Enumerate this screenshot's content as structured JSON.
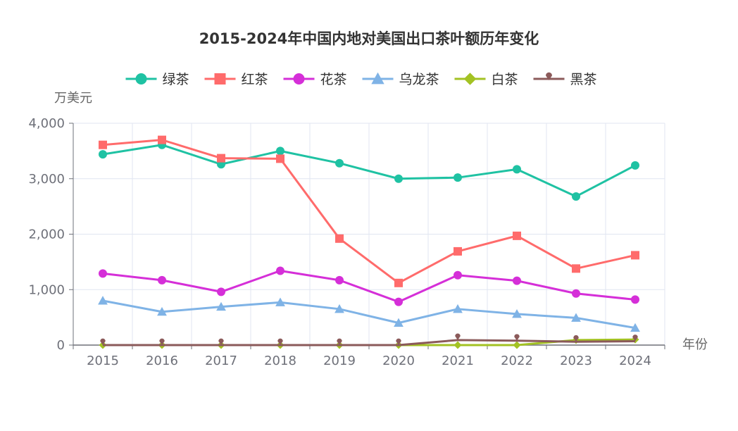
{
  "chart_data": {
    "type": "line",
    "title": "2015-2024年中国内地对美国出口茶叶额历年变化",
    "ylabel": "万美元",
    "xlabel": "年份",
    "categories": [
      "2015",
      "2016",
      "2017",
      "2018",
      "2019",
      "2020",
      "2021",
      "2022",
      "2023",
      "2024"
    ],
    "ylim": [
      0,
      4000
    ],
    "yticks": [
      "0",
      "1,000",
      "2,000",
      "3,000",
      "4,000"
    ],
    "grid": true,
    "legend_position": "top-center",
    "series": [
      {
        "name": "绿茶",
        "color": "#1fc2a3",
        "marker": "circle",
        "values": [
          3440,
          3610,
          3260,
          3500,
          3280,
          3000,
          3020,
          3170,
          2680,
          3240
        ]
      },
      {
        "name": "红茶",
        "color": "#ff6b6b",
        "marker": "square",
        "values": [
          3610,
          3700,
          3370,
          3360,
          1920,
          1120,
          1690,
          1970,
          1380,
          1620
        ]
      },
      {
        "name": "花茶",
        "color": "#d52fd8",
        "marker": "circle",
        "values": [
          1290,
          1170,
          960,
          1340,
          1170,
          780,
          1260,
          1160,
          930,
          820
        ]
      },
      {
        "name": "乌龙茶",
        "color": "#7fb3e6",
        "marker": "triangle",
        "values": [
          800,
          600,
          690,
          770,
          650,
          400,
          650,
          560,
          490,
          310
        ]
      },
      {
        "name": "白茶",
        "color": "#a3c223",
        "marker": "diamond",
        "values": [
          0,
          0,
          0,
          0,
          0,
          0,
          0,
          0,
          90,
          100
        ]
      },
      {
        "name": "黑茶",
        "color": "#8b5a5a",
        "marker": "pin",
        "values": [
          0,
          0,
          0,
          0,
          0,
          0,
          90,
          80,
          60,
          70
        ]
      }
    ]
  }
}
